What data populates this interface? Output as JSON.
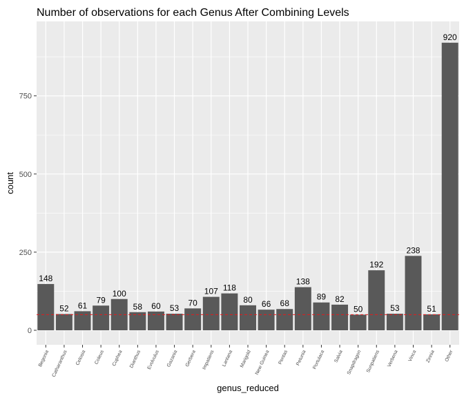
{
  "chart_data": {
    "type": "bar",
    "title": "Number of observations for each Genus After Combining Levels",
    "xlabel": "genus_reduced",
    "ylabel": "count",
    "categories": [
      "Begonia",
      "Catharanthus",
      "Celosia",
      "Coleus",
      "Cuphea",
      "Dianthus",
      "Evolvulus",
      "Gazania",
      "Gerbera",
      "Impatiens",
      "Lantana",
      "Marigold",
      "New Guinea",
      "Pentas",
      "Petunia",
      "Portulaca",
      "Salvia",
      "Snapdragon",
      "Sunpatiens",
      "Verbena",
      "Vinca",
      "Zinnia",
      "Other"
    ],
    "values": [
      148,
      52,
      61,
      79,
      100,
      58,
      60,
      53,
      70,
      107,
      118,
      80,
      66,
      68,
      138,
      89,
      82,
      50,
      192,
      53,
      238,
      51,
      920
    ],
    "ylim": [
      0,
      966
    ],
    "yticks": [
      0,
      250,
      500,
      750
    ],
    "reference_line": {
      "y": 50,
      "style": "dashed",
      "color": "#e41a1c"
    },
    "grid": true,
    "legend": "none",
    "colors": {
      "bar": "#595959",
      "panel": "#ebebeb",
      "grid": "#ffffff",
      "reference": "#e41a1c"
    }
  }
}
